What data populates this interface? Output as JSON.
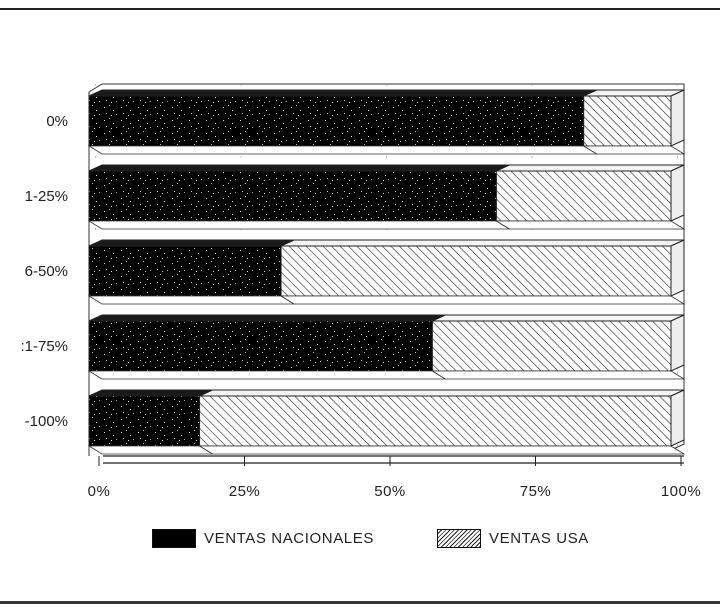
{
  "chart_data": {
    "type": "bar",
    "orientation": "horizontal",
    "stacked": true,
    "percent_stacked": true,
    "categories": [
      "0%",
      "1-25%",
      "6-50%",
      ":1-75%",
      "-100%"
    ],
    "series": [
      {
        "name": "VENTAS NACIONALES",
        "values": [
          85,
          70,
          33,
          59,
          19
        ],
        "fill": "#000000",
        "pattern": "solid-speckled"
      },
      {
        "name": "VENTAS USA",
        "values": [
          15,
          30,
          67,
          41,
          81
        ],
        "fill": "#ffffff",
        "pattern": "diagonal-hatch"
      }
    ],
    "x_tick_labels": [
      "0%",
      "25%",
      "50%",
      "75%",
      "100%"
    ],
    "xlim": [
      0,
      100
    ],
    "title": "",
    "xlabel": "",
    "ylabel": "",
    "grid": true,
    "legend_position": "bottom",
    "style": "3d-bars"
  }
}
